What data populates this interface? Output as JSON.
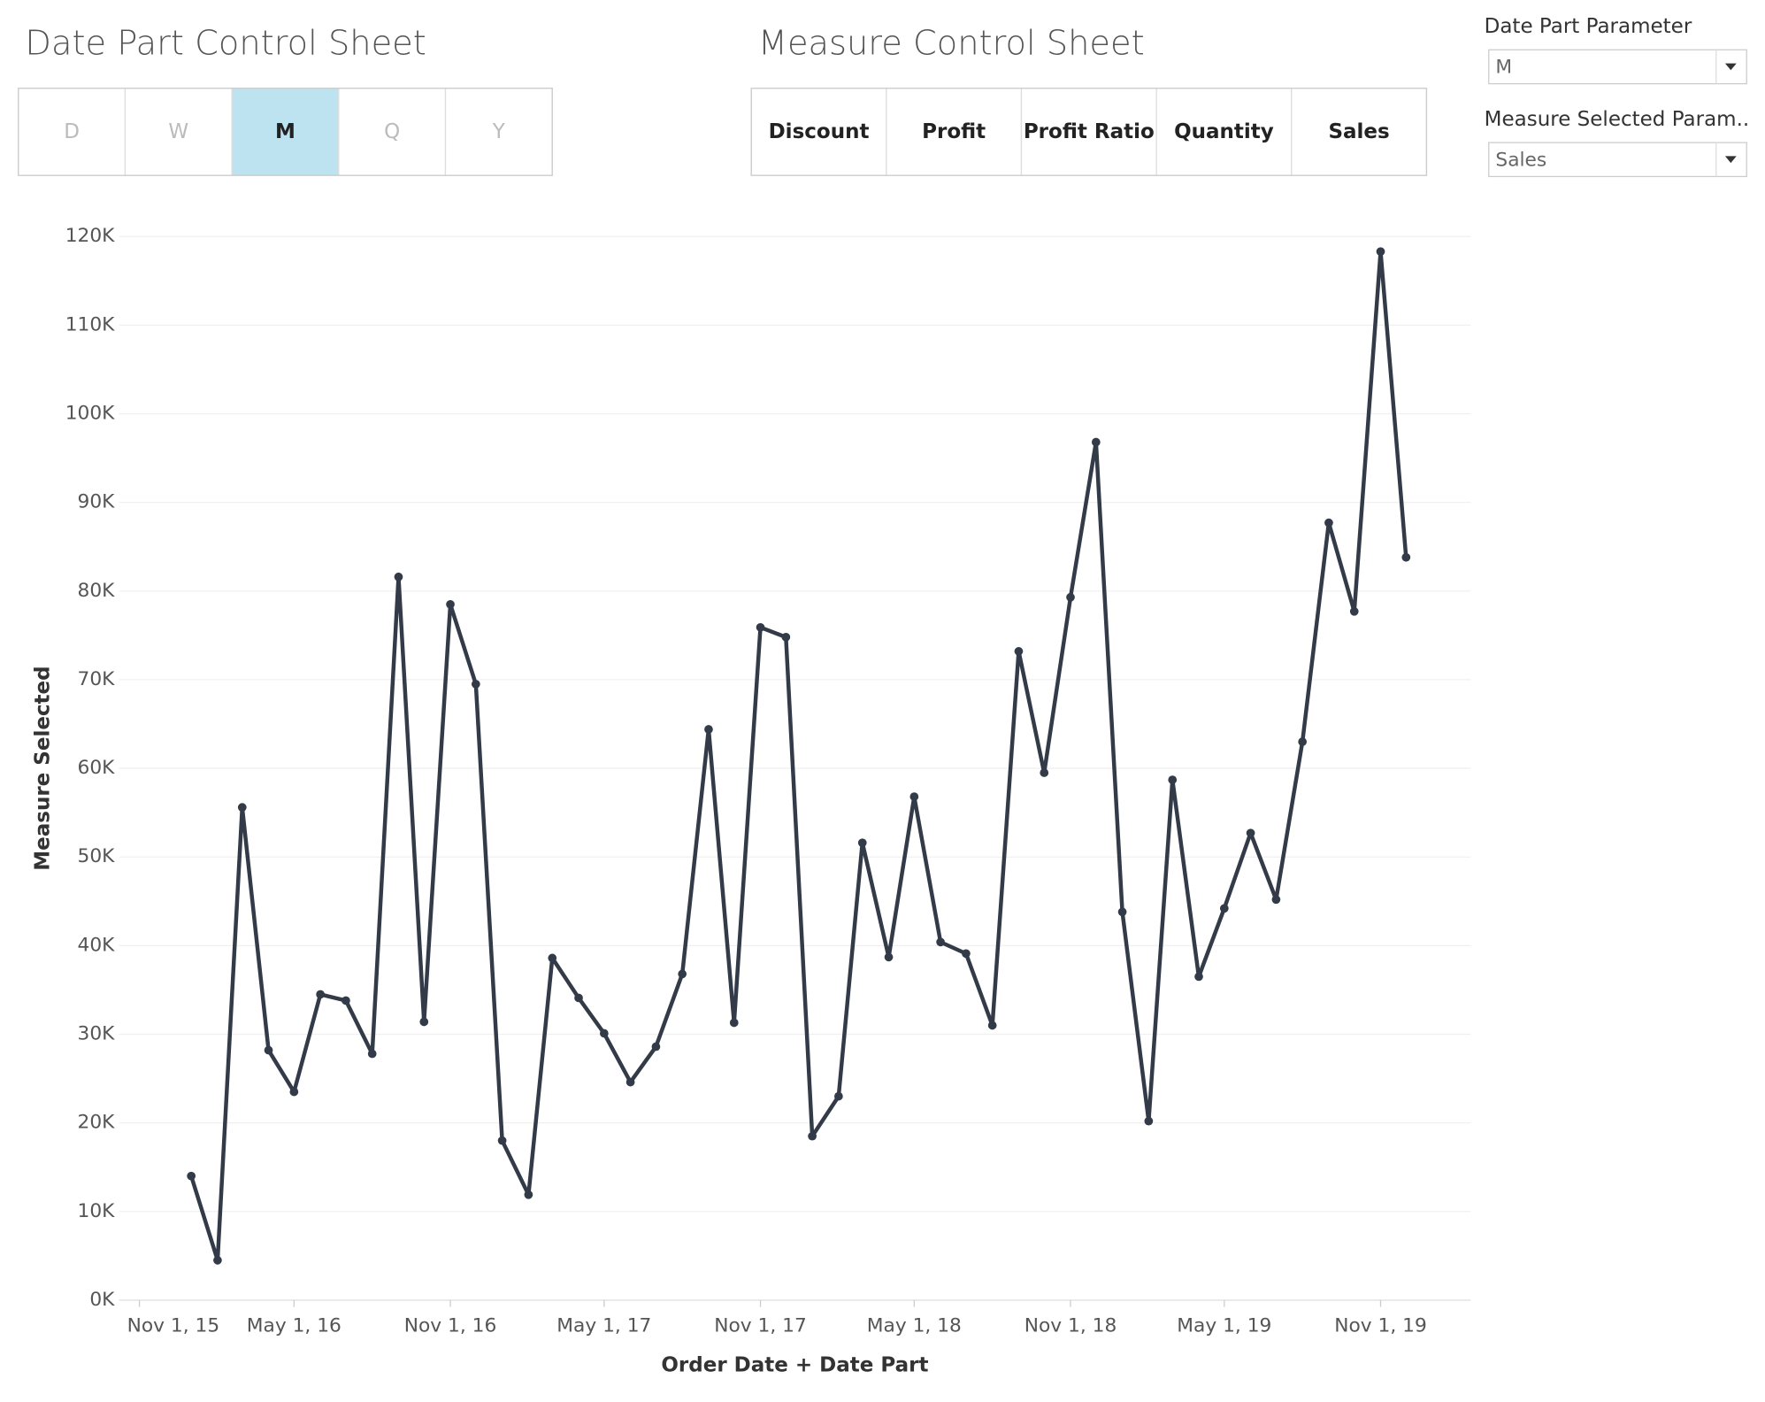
{
  "date_part_sheet": {
    "title": "Date Part Control Sheet",
    "options": [
      "D",
      "W",
      "M",
      "Q",
      "Y"
    ],
    "selected": "M"
  },
  "measure_sheet": {
    "title": "Measure Control Sheet",
    "options": [
      "Discount",
      "Profit",
      "Profit Ratio",
      "Quantity",
      "Sales"
    ]
  },
  "parameters": [
    {
      "label": "Date Part Parameter",
      "value": "M"
    },
    {
      "label": "Measure Selected Param..",
      "value": "Sales"
    }
  ],
  "chart_data": {
    "type": "line",
    "x_label": "Order Date + Date Part",
    "y_label": "Measure Selected",
    "x": [
      "2016-01-01",
      "2016-02-01",
      "2016-03-01",
      "2016-04-01",
      "2016-05-01",
      "2016-06-01",
      "2016-07-01",
      "2016-08-01",
      "2016-09-01",
      "2016-10-01",
      "2016-11-01",
      "2016-12-01",
      "2017-01-01",
      "2017-02-01",
      "2017-03-01",
      "2017-04-01",
      "2017-05-01",
      "2017-06-01",
      "2017-07-01",
      "2017-08-01",
      "2017-09-01",
      "2017-10-01",
      "2017-11-01",
      "2017-12-01",
      "2018-01-01",
      "2018-02-01",
      "2018-03-01",
      "2018-04-01",
      "2018-05-01",
      "2018-06-01",
      "2018-07-01",
      "2018-08-01",
      "2018-09-01",
      "2018-10-01",
      "2018-11-01",
      "2018-12-01",
      "2019-01-01",
      "2019-02-01",
      "2019-03-01",
      "2019-04-01",
      "2019-05-01",
      "2019-06-01",
      "2019-07-01",
      "2019-08-01",
      "2019-09-01",
      "2019-10-01",
      "2019-11-01",
      "2019-12-01"
    ],
    "series": [
      {
        "name": "Sales",
        "color": "#333a48",
        "values": [
          14000,
          4500,
          55600,
          28200,
          23500,
          34500,
          33800,
          27800,
          81600,
          31400,
          78500,
          69500,
          18000,
          11900,
          38600,
          34100,
          30100,
          24600,
          28600,
          36800,
          64400,
          31300,
          75900,
          74800,
          18500,
          23000,
          51600,
          38700,
          56800,
          40400,
          39100,
          31000,
          73200,
          59500,
          79300,
          96800,
          43800,
          20200,
          58700,
          36500,
          44200,
          52700,
          45200,
          63000,
          87700,
          77700,
          118300,
          83800
        ]
      }
    ],
    "xlim": [
      "2015-10-08",
      "2020-02-15"
    ],
    "xticks": [
      {
        "value": "2015-11-01",
        "label": "Nov 1, 15"
      },
      {
        "value": "2016-05-01",
        "label": "May 1, 16"
      },
      {
        "value": "2016-11-01",
        "label": "Nov 1, 16"
      },
      {
        "value": "2017-05-01",
        "label": "May 1, 17"
      },
      {
        "value": "2017-11-01",
        "label": "Nov 1, 17"
      },
      {
        "value": "2018-05-01",
        "label": "May 1, 18"
      },
      {
        "value": "2018-11-01",
        "label": "Nov 1, 18"
      },
      {
        "value": "2019-05-01",
        "label": "May 1, 19"
      },
      {
        "value": "2019-11-01",
        "label": "Nov 1, 19"
      }
    ],
    "ylim": [
      0,
      120000
    ],
    "yticks": [
      {
        "value": 0,
        "label": "0K"
      },
      {
        "value": 10000,
        "label": "10K"
      },
      {
        "value": 20000,
        "label": "20K"
      },
      {
        "value": 30000,
        "label": "30K"
      },
      {
        "value": 40000,
        "label": "40K"
      },
      {
        "value": 50000,
        "label": "50K"
      },
      {
        "value": 60000,
        "label": "60K"
      },
      {
        "value": 70000,
        "label": "70K"
      },
      {
        "value": 80000,
        "label": "80K"
      },
      {
        "value": 90000,
        "label": "90K"
      },
      {
        "value": 100000,
        "label": "100K"
      },
      {
        "value": 110000,
        "label": "110K"
      },
      {
        "value": 120000,
        "label": "120K"
      }
    ],
    "grid": true
  }
}
